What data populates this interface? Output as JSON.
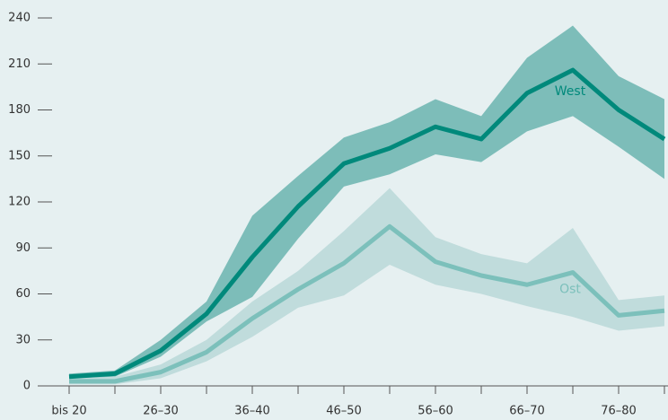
{
  "chart_data": {
    "type": "line",
    "categories": [
      "bis 20",
      null,
      "26–30",
      null,
      "36–40",
      null,
      "46–50",
      null,
      "56–60",
      null,
      "66–70",
      null,
      "76–80",
      null
    ],
    "series": [
      {
        "name": "West",
        "color": "#00897b",
        "band_color": "#7dbdb9",
        "values": [
          6,
          8,
          23,
          47,
          84,
          117,
          145,
          155,
          169,
          161,
          191,
          206,
          180,
          161
        ],
        "lower": [
          4,
          6,
          19,
          42,
          58,
          96,
          130,
          138,
          151,
          146,
          166,
          176,
          156,
          135
        ],
        "upper": [
          8,
          10,
          30,
          55,
          111,
          137,
          162,
          172,
          187,
          176,
          214,
          235,
          202,
          187
        ]
      },
      {
        "name": "Ost",
        "color": "#7cc0bb",
        "band_color": "#c0dcdc",
        "values": [
          3,
          3,
          9,
          22,
          44,
          63,
          80,
          104,
          81,
          72,
          66,
          74,
          46,
          49
        ],
        "lower": [
          1,
          1,
          5,
          16,
          32,
          51,
          59,
          79,
          66,
          60,
          52,
          45,
          36,
          39
        ],
        "upper": [
          5,
          6,
          14,
          30,
          55,
          75,
          101,
          129,
          97,
          86,
          80,
          103,
          56,
          59
        ]
      }
    ],
    "ylim": [
      0,
      240
    ],
    "yticks": [
      0,
      30,
      60,
      90,
      120,
      150,
      180,
      210,
      240
    ]
  }
}
